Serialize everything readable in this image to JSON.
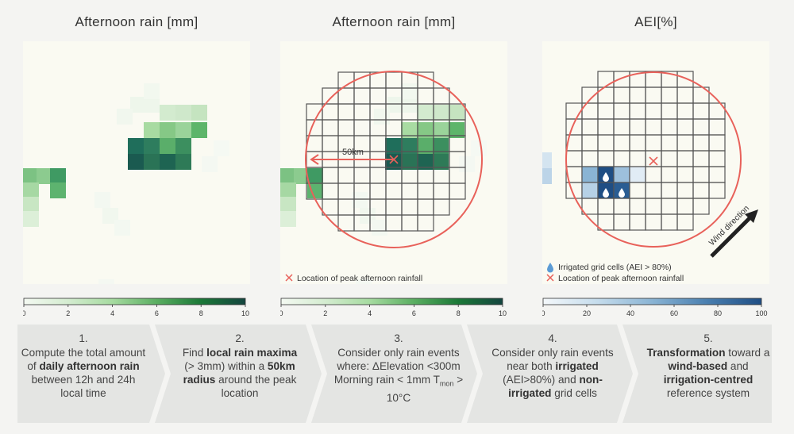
{
  "panels": [
    {
      "title": "Afternoon rain [mm]"
    },
    {
      "title": "Afternoon rain [mm]"
    },
    {
      "title": "AEI[%]"
    }
  ],
  "rain_colorbar": {
    "ticks": [
      "0",
      "2",
      "4",
      "6",
      "8",
      "10"
    ],
    "colors": [
      "#f4f9f2",
      "#d4ecd0",
      "#a6dba0",
      "#5aae61",
      "#1b7837",
      "#14453f"
    ]
  },
  "aei_colorbar": {
    "ticks": [
      "0",
      "20",
      "40",
      "60",
      "80",
      "100"
    ],
    "colors": [
      "#f4f8fb",
      "#c5dcec",
      "#8ab4d4",
      "#4a7fb0",
      "#1f4e84"
    ]
  },
  "annotations": {
    "distance_label": "50km",
    "peak_legend": "Location of peak afternoon rainfall",
    "irrigated_legend": "Irrigated grid cells (AEI > 80%)",
    "wind_direction": "Wind direction"
  },
  "colors": {
    "circle": "#e8615a",
    "grid": "#555555",
    "arrow": "#222222",
    "panel_bg": "#fafaf2"
  },
  "steps": [
    {
      "num": "1.",
      "parts": [
        [
          "Compute the total amount of ",
          false
        ],
        [
          "daily afternoon rain",
          true
        ],
        [
          " between 12h and 24h local time",
          false
        ]
      ]
    },
    {
      "num": "2.",
      "parts": [
        [
          "Find ",
          false
        ],
        [
          "local rain maxima",
          true
        ],
        [
          " (> 3mm) within a ",
          false
        ],
        [
          "50km radius",
          true
        ],
        [
          " around the peak location",
          false
        ]
      ]
    },
    {
      "num": "3.",
      "parts": [
        [
          "Consider only rain events where: ",
          false
        ],
        [
          "ΔElevation <300m Morning rain < 1mm T",
          false
        ]
      ],
      "sub": "mon",
      "tail": " > 10°C"
    },
    {
      "num": "4.",
      "parts": [
        [
          "Consider only rain events near both ",
          false
        ],
        [
          "irrigated",
          true
        ],
        [
          " (AEI>80%) and ",
          false
        ],
        [
          "non-irrigated",
          true
        ],
        [
          " grid cells",
          false
        ]
      ]
    },
    {
      "num": "5.",
      "parts": [
        [
          "Transformation",
          true
        ],
        [
          " toward a ",
          false
        ],
        [
          "wind-based",
          true
        ],
        [
          " and ",
          false
        ],
        [
          "irrigation-centred",
          true
        ],
        [
          " reference system",
          false
        ]
      ]
    }
  ]
}
